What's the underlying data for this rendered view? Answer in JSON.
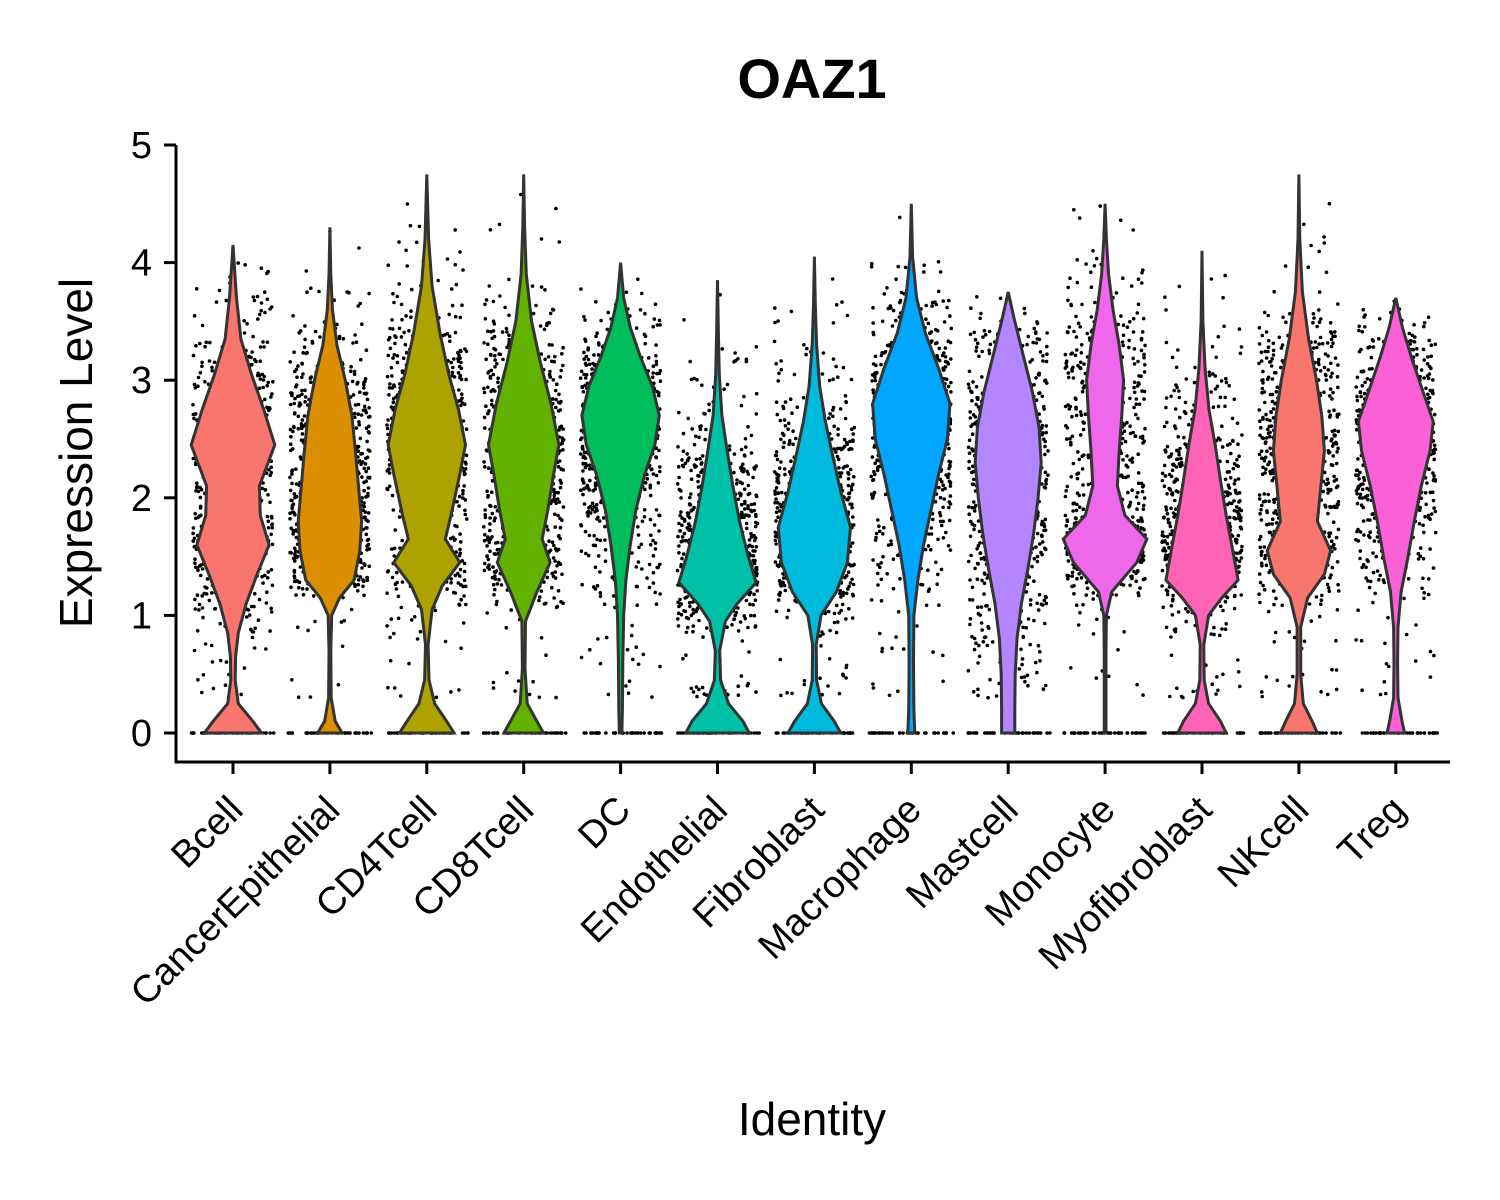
{
  "chart_data": {
    "type": "violin",
    "title": "OAZ1",
    "xlabel": "Identity",
    "ylabel": "Expression Level",
    "ylim": [
      0,
      5
    ],
    "yticks": [
      0,
      1,
      2,
      3,
      4,
      5
    ],
    "legend": "none",
    "grid": false,
    "jitter_points": true,
    "categories": [
      "Bcell",
      "CancerEpithelial",
      "CD4Tcell",
      "CD8Tcell",
      "DC",
      "Endothelial",
      "Fibroblast",
      "Macrophage",
      "Mastcell",
      "Monocyte",
      "Myofibroblast",
      "NKcell",
      "Treg"
    ],
    "series": [
      {
        "category": "Bcell",
        "color": "#F8766D",
        "max": 4.15,
        "median": 1.8,
        "density": [
          [
            0,
            0.65
          ],
          [
            0.1,
            0.45
          ],
          [
            0.25,
            0.12
          ],
          [
            0.45,
            0.05
          ],
          [
            0.65,
            0.06
          ],
          [
            0.85,
            0.12
          ],
          [
            1.1,
            0.3
          ],
          [
            1.35,
            0.55
          ],
          [
            1.6,
            0.82
          ],
          [
            1.85,
            0.62
          ],
          [
            2.1,
            0.6
          ],
          [
            2.45,
            0.95
          ],
          [
            2.75,
            0.7
          ],
          [
            3.05,
            0.42
          ],
          [
            3.35,
            0.18
          ],
          [
            3.7,
            0.08
          ],
          [
            4.15,
            0
          ]
        ]
      },
      {
        "category": "CancerEpithelial",
        "color": "#DB8E00",
        "max": 4.3,
        "median": 2.0,
        "density": [
          [
            0,
            0.28
          ],
          [
            0.1,
            0.12
          ],
          [
            0.3,
            0.03
          ],
          [
            0.7,
            0.02
          ],
          [
            1.0,
            0.04
          ],
          [
            1.15,
            0.22
          ],
          [
            1.3,
            0.55
          ],
          [
            1.55,
            0.68
          ],
          [
            1.8,
            0.72
          ],
          [
            2.1,
            0.65
          ],
          [
            2.4,
            0.58
          ],
          [
            2.7,
            0.5
          ],
          [
            3.0,
            0.35
          ],
          [
            3.3,
            0.16
          ],
          [
            3.6,
            0.06
          ],
          [
            3.9,
            0.02
          ],
          [
            4.3,
            0
          ]
        ]
      },
      {
        "category": "CD4Tcell",
        "color": "#AEA200",
        "max": 4.75,
        "median": 2.3,
        "density": [
          [
            0,
            0.62
          ],
          [
            0.1,
            0.45
          ],
          [
            0.25,
            0.18
          ],
          [
            0.45,
            0.05
          ],
          [
            0.75,
            0.03
          ],
          [
            1.05,
            0.12
          ],
          [
            1.25,
            0.35
          ],
          [
            1.45,
            0.75
          ],
          [
            1.65,
            0.42
          ],
          [
            1.85,
            0.55
          ],
          [
            2.2,
            0.75
          ],
          [
            2.45,
            0.88
          ],
          [
            2.75,
            0.72
          ],
          [
            3.05,
            0.5
          ],
          [
            3.4,
            0.3
          ],
          [
            3.8,
            0.12
          ],
          [
            4.2,
            0.04
          ],
          [
            4.75,
            0
          ]
        ]
      },
      {
        "category": "CD8Tcell",
        "color": "#64B200",
        "max": 4.75,
        "median": 2.3,
        "density": [
          [
            0,
            0.45
          ],
          [
            0.1,
            0.3
          ],
          [
            0.25,
            0.08
          ],
          [
            0.55,
            0.03
          ],
          [
            0.95,
            0.04
          ],
          [
            1.2,
            0.3
          ],
          [
            1.45,
            0.6
          ],
          [
            1.65,
            0.42
          ],
          [
            1.9,
            0.55
          ],
          [
            2.2,
            0.68
          ],
          [
            2.45,
            0.8
          ],
          [
            2.8,
            0.62
          ],
          [
            3.15,
            0.38
          ],
          [
            3.5,
            0.18
          ],
          [
            3.9,
            0.06
          ],
          [
            4.3,
            0.02
          ],
          [
            4.75,
            0
          ]
        ]
      },
      {
        "category": "DC",
        "color": "#00BD5C",
        "max": 4.0,
        "median": 2.5,
        "density": [
          [
            0,
            0.03
          ],
          [
            0.2,
            0.04
          ],
          [
            0.6,
            0.05
          ],
          [
            1.0,
            0.07
          ],
          [
            1.3,
            0.12
          ],
          [
            1.6,
            0.22
          ],
          [
            1.9,
            0.35
          ],
          [
            2.2,
            0.55
          ],
          [
            2.45,
            0.78
          ],
          [
            2.7,
            0.88
          ],
          [
            2.95,
            0.72
          ],
          [
            3.2,
            0.45
          ],
          [
            3.45,
            0.22
          ],
          [
            3.7,
            0.07
          ],
          [
            4.0,
            0
          ]
        ]
      },
      {
        "category": "Endothelial",
        "color": "#00C1A7",
        "max": 3.85,
        "median": 1.5,
        "density": [
          [
            0,
            0.72
          ],
          [
            0.1,
            0.58
          ],
          [
            0.25,
            0.25
          ],
          [
            0.45,
            0.07
          ],
          [
            0.7,
            0.05
          ],
          [
            0.95,
            0.18
          ],
          [
            1.1,
            0.45
          ],
          [
            1.28,
            0.88
          ],
          [
            1.5,
            0.7
          ],
          [
            1.8,
            0.5
          ],
          [
            2.1,
            0.35
          ],
          [
            2.4,
            0.22
          ],
          [
            2.7,
            0.1
          ],
          [
            3.05,
            0.04
          ],
          [
            3.4,
            0.02
          ],
          [
            3.85,
            0
          ]
        ]
      },
      {
        "category": "Fibroblast",
        "color": "#00BADE",
        "max": 4.05,
        "median": 1.6,
        "density": [
          [
            0,
            0.6
          ],
          [
            0.1,
            0.45
          ],
          [
            0.25,
            0.16
          ],
          [
            0.45,
            0.05
          ],
          [
            0.75,
            0.04
          ],
          [
            1.0,
            0.15
          ],
          [
            1.2,
            0.5
          ],
          [
            1.45,
            0.75
          ],
          [
            1.75,
            0.82
          ],
          [
            2.05,
            0.6
          ],
          [
            2.35,
            0.42
          ],
          [
            2.65,
            0.25
          ],
          [
            2.95,
            0.12
          ],
          [
            3.3,
            0.05
          ],
          [
            3.65,
            0.02
          ],
          [
            4.05,
            0
          ]
        ]
      },
      {
        "category": "Macrophage",
        "color": "#00A6FF",
        "max": 4.5,
        "median": 2.5,
        "density": [
          [
            0,
            0.08
          ],
          [
            0.2,
            0.06
          ],
          [
            0.6,
            0.05
          ],
          [
            1.0,
            0.06
          ],
          [
            1.3,
            0.15
          ],
          [
            1.6,
            0.28
          ],
          [
            1.9,
            0.45
          ],
          [
            2.2,
            0.62
          ],
          [
            2.5,
            0.82
          ],
          [
            2.8,
            0.88
          ],
          [
            3.1,
            0.62
          ],
          [
            3.4,
            0.32
          ],
          [
            3.7,
            0.12
          ],
          [
            4.05,
            0.03
          ],
          [
            4.5,
            0
          ]
        ]
      },
      {
        "category": "Mastcell",
        "color": "#B385FF",
        "max": 3.75,
        "median": 2.1,
        "density": [
          [
            0,
            0.15
          ],
          [
            0.2,
            0.15
          ],
          [
            0.5,
            0.16
          ],
          [
            0.8,
            0.2
          ],
          [
            1.1,
            0.3
          ],
          [
            1.4,
            0.45
          ],
          [
            1.7,
            0.58
          ],
          [
            2.0,
            0.68
          ],
          [
            2.3,
            0.75
          ],
          [
            2.6,
            0.7
          ],
          [
            2.9,
            0.55
          ],
          [
            3.2,
            0.35
          ],
          [
            3.5,
            0.15
          ],
          [
            3.75,
            0
          ]
        ]
      },
      {
        "category": "Monocyte",
        "color": "#EF67EB",
        "max": 4.5,
        "median": 2.0,
        "density": [
          [
            0,
            0.02
          ],
          [
            0.3,
            0.02
          ],
          [
            0.7,
            0.02
          ],
          [
            1.0,
            0.03
          ],
          [
            1.2,
            0.15
          ],
          [
            1.45,
            0.72
          ],
          [
            1.65,
            0.95
          ],
          [
            1.85,
            0.45
          ],
          [
            2.1,
            0.28
          ],
          [
            2.4,
            0.32
          ],
          [
            2.7,
            0.38
          ],
          [
            3.0,
            0.42
          ],
          [
            3.3,
            0.32
          ],
          [
            3.6,
            0.18
          ],
          [
            3.9,
            0.08
          ],
          [
            4.2,
            0.03
          ],
          [
            4.5,
            0
          ]
        ]
      },
      {
        "category": "Myofibroblast",
        "color": "#FF63B6",
        "max": 4.1,
        "median": 1.6,
        "density": [
          [
            0,
            0.55
          ],
          [
            0.1,
            0.42
          ],
          [
            0.25,
            0.15
          ],
          [
            0.45,
            0.05
          ],
          [
            0.75,
            0.04
          ],
          [
            1.0,
            0.15
          ],
          [
            1.15,
            0.45
          ],
          [
            1.3,
            0.82
          ],
          [
            1.55,
            0.7
          ],
          [
            1.85,
            0.55
          ],
          [
            2.15,
            0.42
          ],
          [
            2.45,
            0.3
          ],
          [
            2.75,
            0.16
          ],
          [
            3.1,
            0.07
          ],
          [
            3.5,
            0.02
          ],
          [
            4.1,
            0
          ]
        ]
      },
      {
        "category": "NKcell",
        "color": "#F8766D",
        "max": 4.75,
        "median": 2.1,
        "density": [
          [
            0,
            0.42
          ],
          [
            0.1,
            0.3
          ],
          [
            0.25,
            0.1
          ],
          [
            0.5,
            0.04
          ],
          [
            0.9,
            0.04
          ],
          [
            1.15,
            0.2
          ],
          [
            1.35,
            0.58
          ],
          [
            1.55,
            0.72
          ],
          [
            1.8,
            0.42
          ],
          [
            2.1,
            0.5
          ],
          [
            2.4,
            0.58
          ],
          [
            2.7,
            0.52
          ],
          [
            3.0,
            0.4
          ],
          [
            3.35,
            0.22
          ],
          [
            3.75,
            0.08
          ],
          [
            4.2,
            0.02
          ],
          [
            4.75,
            0
          ]
        ]
      },
      {
        "category": "Treg",
        "color": "#FB61D7",
        "max": 3.7,
        "median": 2.5,
        "density": [
          [
            0,
            0.2
          ],
          [
            0.1,
            0.14
          ],
          [
            0.3,
            0.05
          ],
          [
            0.6,
            0.04
          ],
          [
            0.9,
            0.05
          ],
          [
            1.2,
            0.12
          ],
          [
            1.5,
            0.28
          ],
          [
            1.8,
            0.42
          ],
          [
            2.1,
            0.58
          ],
          [
            2.4,
            0.78
          ],
          [
            2.65,
            0.85
          ],
          [
            2.9,
            0.62
          ],
          [
            3.2,
            0.35
          ],
          [
            3.45,
            0.15
          ],
          [
            3.7,
            0
          ]
        ]
      }
    ]
  }
}
